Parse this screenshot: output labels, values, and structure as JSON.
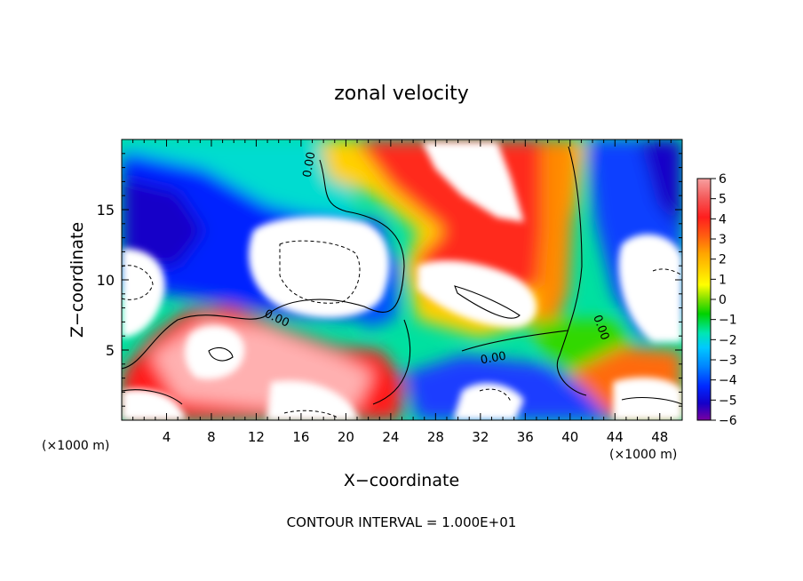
{
  "chart_data": {
    "type": "heatmap",
    "title": "zonal velocity",
    "xlabel": "X−coordinate",
    "ylabel": "Z−coordinate",
    "x_unit_left": "(×1000 m)",
    "x_unit_right": "(×1000 m)",
    "xlim": [
      0,
      50
    ],
    "ylim": [
      0,
      20
    ],
    "x_ticks": [
      4,
      8,
      12,
      16,
      20,
      24,
      28,
      32,
      36,
      40,
      44,
      48
    ],
    "y_ticks": [
      5,
      10,
      15
    ],
    "colorbar": {
      "range": [
        -6,
        6
      ],
      "ticks": [
        "6",
        "5",
        "4",
        "3",
        "2",
        "1",
        "0",
        "−1",
        "−2",
        "−3",
        "−4",
        "−5",
        "−6"
      ],
      "colors_top_to_bottom": [
        "#f7a0a0",
        "#f45a5a",
        "#ff1e1e",
        "#ff6010",
        "#ffa500",
        "#ffd400",
        "#ffff00",
        "#b8f000",
        "#5ce000",
        "#00d200",
        "#00e6b4",
        "#00c8ff",
        "#0082ff",
        "#0028ff",
        "#1400c8",
        "#7a00a0"
      ]
    },
    "contour_labels": [
      "0.00",
      "0.00",
      "0.00",
      "0.00"
    ],
    "footer": "CONTOUR INTERVAL = 1.000E+01",
    "colors": {
      "pos_high": "#ff1e1e",
      "neg_high": "#0014d2",
      "zero": "#00d200",
      "saturated": "#ffffff"
    }
  }
}
